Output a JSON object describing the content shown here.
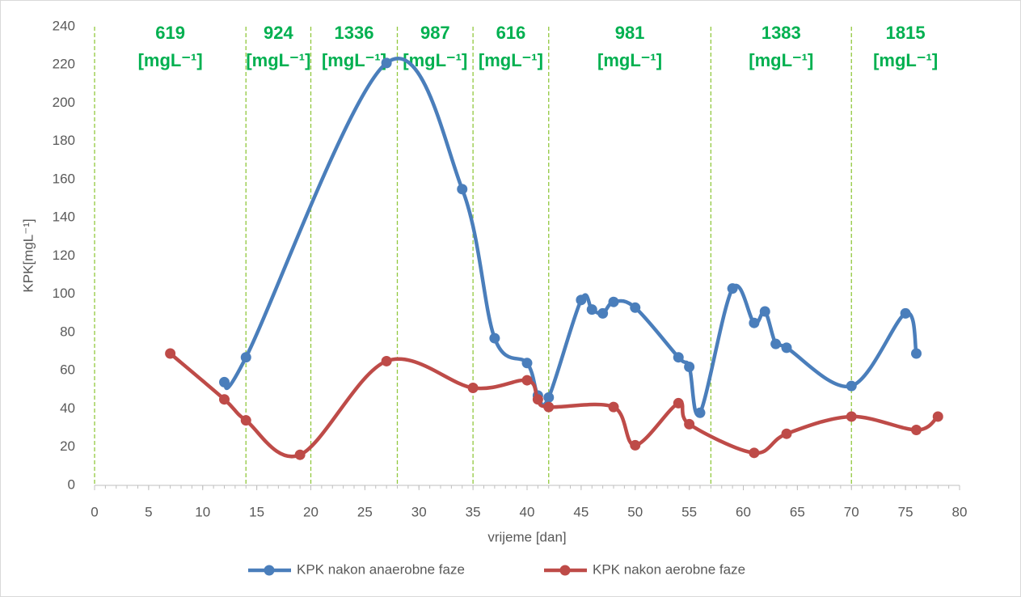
{
  "chart_data": {
    "type": "scatter",
    "x_label": "vrijeme [dan]",
    "y_label": "KPK[mgL⁻¹]",
    "xlim": [
      0,
      80
    ],
    "xticks": [
      0,
      5,
      10,
      15,
      20,
      25,
      30,
      35,
      40,
      45,
      50,
      55,
      60,
      65,
      70,
      75,
      80
    ],
    "ylim": [
      0,
      240
    ],
    "yticks": [
      0,
      20,
      40,
      60,
      80,
      100,
      120,
      140,
      160,
      180,
      200,
      220,
      240
    ],
    "grid": false,
    "smooth": true,
    "legend": "bottom",
    "phase_lines": [
      0,
      14,
      20,
      28,
      35,
      42,
      57,
      70
    ],
    "phase_color": "#92c83e",
    "annotation_color": "#00b050",
    "annotations": [
      {
        "value": "619",
        "unit": "[mgL⁻¹]"
      },
      {
        "value": "924",
        "unit": "[mgL⁻¹]"
      },
      {
        "value": "1336",
        "unit": "[mgL⁻¹]"
      },
      {
        "value": "987",
        "unit": "[mgL⁻¹]"
      },
      {
        "value": "616",
        "unit": "[mgL⁻¹]"
      },
      {
        "value": "981",
        "unit": "[mgL⁻¹]"
      },
      {
        "value": "1383",
        "unit": "[mgL⁻¹]"
      },
      {
        "value": "1815",
        "unit": "[mgL⁻¹]"
      }
    ],
    "series": [
      {
        "name": "KPK nakon anaerobne faze",
        "color": "#4a7ebb",
        "x": [
          12,
          14,
          27,
          34,
          37,
          40,
          41,
          42,
          45,
          46,
          47,
          48,
          50,
          54,
          55,
          56,
          59,
          61,
          62,
          63,
          64,
          70,
          75,
          76
        ],
        "values": [
          54,
          67,
          221,
          155,
          77,
          64,
          47,
          46,
          97,
          92,
          90,
          96,
          93,
          67,
          62,
          38,
          103,
          85,
          91,
          74,
          72,
          52,
          90,
          69
        ]
      },
      {
        "name": "KPK nakon aerobne faze",
        "color": "#be4b48",
        "x": [
          7,
          12,
          14,
          19,
          27,
          35,
          40,
          41,
          42,
          48,
          50,
          54,
          55,
          61,
          64,
          70,
          76,
          78
        ],
        "values": [
          69,
          45,
          34,
          16,
          65,
          51,
          55,
          45,
          41,
          41,
          21,
          43,
          32,
          17,
          27,
          36,
          29,
          36
        ]
      }
    ]
  }
}
